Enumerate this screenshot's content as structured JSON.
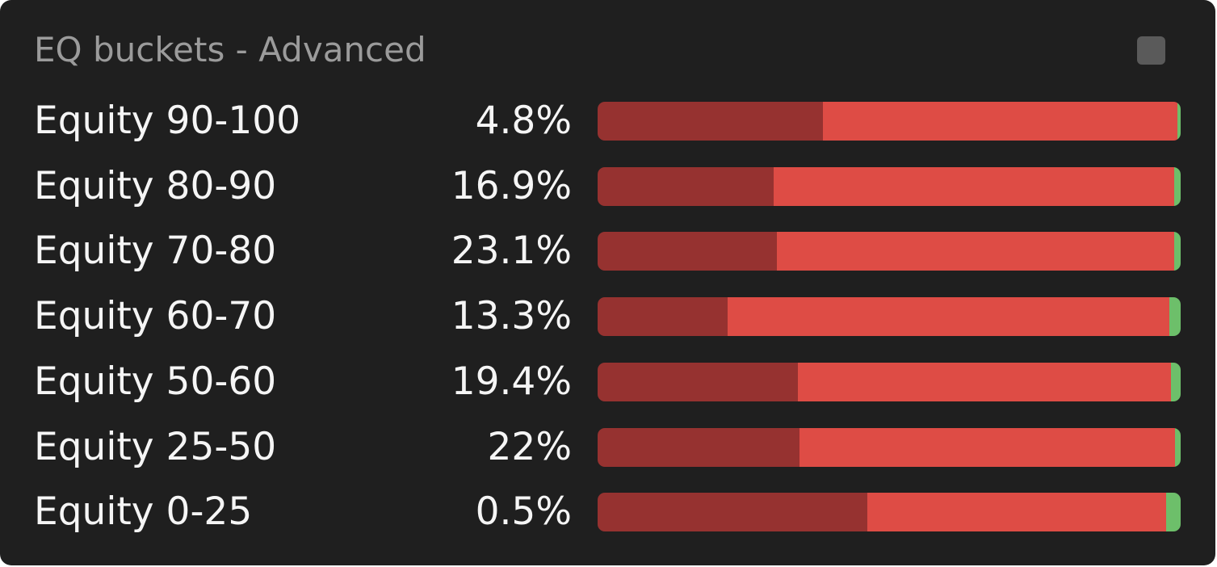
{
  "widget": {
    "title": "EQ buckets - Advanced",
    "segment_colors": [
      "#963230",
      "#de4c45",
      "#6dbf6a"
    ],
    "bar_range": [
      0,
      100
    ],
    "rows": [
      {
        "label": "Equity 90-100",
        "share": "4.8%",
        "segments": [
          38.6,
          60.8,
          0.6
        ]
      },
      {
        "label": "Equity 80-90",
        "share": "16.9%",
        "segments": [
          30.2,
          68.7,
          1.1
        ]
      },
      {
        "label": "Equity 70-80",
        "share": "23.1%",
        "segments": [
          30.8,
          68.1,
          1.1
        ]
      },
      {
        "label": "Equity 60-70",
        "share": "13.3%",
        "segments": [
          22.3,
          75.8,
          1.9
        ]
      },
      {
        "label": "Equity 50-60",
        "share": "19.4%",
        "segments": [
          34.3,
          64.0,
          1.7
        ]
      },
      {
        "label": "Equity 25-50",
        "share": "22%",
        "segments": [
          34.6,
          64.4,
          1.0
        ]
      },
      {
        "label": "Equity 0-25",
        "share": "0.5%",
        "segments": [
          46.3,
          51.2,
          2.5
        ]
      }
    ]
  }
}
